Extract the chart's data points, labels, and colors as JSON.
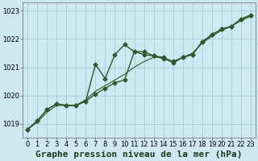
{
  "title": "Graphe pression niveau de la mer (hPa)",
  "background_color": "#cde8f0",
  "grid_color": "#aacfdc",
  "line_color": "#2d5a2d",
  "xlim": [
    -0.5,
    23.5
  ],
  "ylim": [
    1018.5,
    1023.3
  ],
  "yticks": [
    1019,
    1020,
    1021,
    1022,
    1023
  ],
  "xticks": [
    0,
    1,
    2,
    3,
    4,
    5,
    6,
    7,
    8,
    9,
    10,
    11,
    12,
    13,
    14,
    15,
    16,
    17,
    18,
    19,
    20,
    21,
    22,
    23
  ],
  "series1_x": [
    0,
    1,
    2,
    3,
    4,
    5,
    6,
    7,
    8,
    9,
    10,
    11,
    12,
    13,
    14,
    15,
    16,
    17,
    18,
    19,
    20,
    21,
    22,
    23
  ],
  "series1_y": [
    1018.8,
    1019.1,
    1019.5,
    1019.7,
    1019.65,
    1019.65,
    1019.8,
    1020.05,
    1020.25,
    1020.45,
    1020.55,
    1021.55,
    1021.45,
    1021.4,
    1021.35,
    1021.15,
    1021.35,
    1021.45,
    1021.9,
    1022.15,
    1022.35,
    1022.45,
    1022.7,
    1022.85
  ],
  "series2_x": [
    0,
    1,
    2,
    3,
    4,
    5,
    6,
    7,
    8,
    9,
    10,
    11,
    12,
    13,
    14,
    15,
    16,
    17,
    18,
    19,
    20,
    21,
    22,
    23
  ],
  "series2_y": [
    1018.8,
    1019.1,
    1019.5,
    1019.7,
    1019.65,
    1019.65,
    1019.8,
    1021.1,
    1020.6,
    1021.45,
    1021.8,
    1021.55,
    1021.55,
    1021.4,
    1021.3,
    1021.2,
    1021.35,
    1021.45,
    1021.9,
    1022.15,
    1022.35,
    1022.45,
    1022.7,
    1022.85
  ],
  "series3_x": [
    0,
    1,
    2,
    3,
    4,
    5,
    6,
    7,
    8,
    9,
    10,
    11,
    12,
    13,
    14,
    15,
    16,
    17,
    18,
    19,
    20,
    21,
    22,
    23
  ],
  "series3_y": [
    1018.8,
    1019.05,
    1019.4,
    1019.65,
    1019.65,
    1019.65,
    1019.85,
    1020.15,
    1020.35,
    1020.55,
    1020.75,
    1021.0,
    1021.2,
    1021.35,
    1021.35,
    1021.2,
    1021.35,
    1021.5,
    1021.85,
    1022.1,
    1022.3,
    1022.45,
    1022.65,
    1022.8
  ],
  "title_fontsize": 8,
  "tick_fontsize": 6,
  "marker_size": 2.5,
  "line_width": 1.0
}
